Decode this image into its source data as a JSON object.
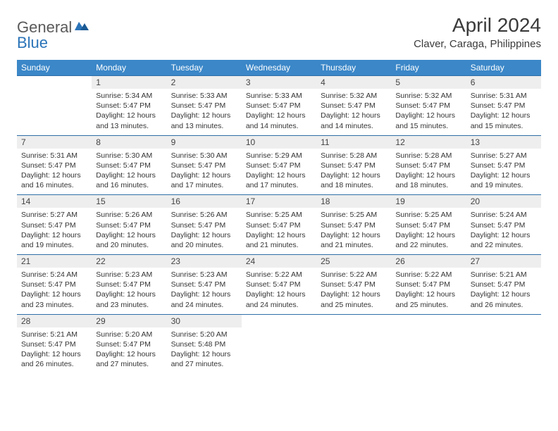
{
  "logo": {
    "general": "General",
    "blue": "Blue"
  },
  "title": "April 2024",
  "location": "Claver, Caraga, Philippines",
  "colors": {
    "header_bg": "#3b87c8",
    "header_text": "#ffffff",
    "daynum_bg": "#eeeeee",
    "rule": "#2f6fa8",
    "logo_gray": "#5a5a5a",
    "logo_blue": "#2b74b8",
    "text": "#333333"
  },
  "calendar": {
    "day_headers": [
      "Sunday",
      "Monday",
      "Tuesday",
      "Wednesday",
      "Thursday",
      "Friday",
      "Saturday"
    ],
    "weeks": [
      {
        "nums": [
          "",
          "1",
          "2",
          "3",
          "4",
          "5",
          "6"
        ],
        "cells": [
          null,
          {
            "sunrise": "Sunrise: 5:34 AM",
            "sunset": "Sunset: 5:47 PM",
            "day1": "Daylight: 12 hours",
            "day2": "and 13 minutes."
          },
          {
            "sunrise": "Sunrise: 5:33 AM",
            "sunset": "Sunset: 5:47 PM",
            "day1": "Daylight: 12 hours",
            "day2": "and 13 minutes."
          },
          {
            "sunrise": "Sunrise: 5:33 AM",
            "sunset": "Sunset: 5:47 PM",
            "day1": "Daylight: 12 hours",
            "day2": "and 14 minutes."
          },
          {
            "sunrise": "Sunrise: 5:32 AM",
            "sunset": "Sunset: 5:47 PM",
            "day1": "Daylight: 12 hours",
            "day2": "and 14 minutes."
          },
          {
            "sunrise": "Sunrise: 5:32 AM",
            "sunset": "Sunset: 5:47 PM",
            "day1": "Daylight: 12 hours",
            "day2": "and 15 minutes."
          },
          {
            "sunrise": "Sunrise: 5:31 AM",
            "sunset": "Sunset: 5:47 PM",
            "day1": "Daylight: 12 hours",
            "day2": "and 15 minutes."
          }
        ]
      },
      {
        "nums": [
          "7",
          "8",
          "9",
          "10",
          "11",
          "12",
          "13"
        ],
        "cells": [
          {
            "sunrise": "Sunrise: 5:31 AM",
            "sunset": "Sunset: 5:47 PM",
            "day1": "Daylight: 12 hours",
            "day2": "and 16 minutes."
          },
          {
            "sunrise": "Sunrise: 5:30 AM",
            "sunset": "Sunset: 5:47 PM",
            "day1": "Daylight: 12 hours",
            "day2": "and 16 minutes."
          },
          {
            "sunrise": "Sunrise: 5:30 AM",
            "sunset": "Sunset: 5:47 PM",
            "day1": "Daylight: 12 hours",
            "day2": "and 17 minutes."
          },
          {
            "sunrise": "Sunrise: 5:29 AM",
            "sunset": "Sunset: 5:47 PM",
            "day1": "Daylight: 12 hours",
            "day2": "and 17 minutes."
          },
          {
            "sunrise": "Sunrise: 5:28 AM",
            "sunset": "Sunset: 5:47 PM",
            "day1": "Daylight: 12 hours",
            "day2": "and 18 minutes."
          },
          {
            "sunrise": "Sunrise: 5:28 AM",
            "sunset": "Sunset: 5:47 PM",
            "day1": "Daylight: 12 hours",
            "day2": "and 18 minutes."
          },
          {
            "sunrise": "Sunrise: 5:27 AM",
            "sunset": "Sunset: 5:47 PM",
            "day1": "Daylight: 12 hours",
            "day2": "and 19 minutes."
          }
        ]
      },
      {
        "nums": [
          "14",
          "15",
          "16",
          "17",
          "18",
          "19",
          "20"
        ],
        "cells": [
          {
            "sunrise": "Sunrise: 5:27 AM",
            "sunset": "Sunset: 5:47 PM",
            "day1": "Daylight: 12 hours",
            "day2": "and 19 minutes."
          },
          {
            "sunrise": "Sunrise: 5:26 AM",
            "sunset": "Sunset: 5:47 PM",
            "day1": "Daylight: 12 hours",
            "day2": "and 20 minutes."
          },
          {
            "sunrise": "Sunrise: 5:26 AM",
            "sunset": "Sunset: 5:47 PM",
            "day1": "Daylight: 12 hours",
            "day2": "and 20 minutes."
          },
          {
            "sunrise": "Sunrise: 5:25 AM",
            "sunset": "Sunset: 5:47 PM",
            "day1": "Daylight: 12 hours",
            "day2": "and 21 minutes."
          },
          {
            "sunrise": "Sunrise: 5:25 AM",
            "sunset": "Sunset: 5:47 PM",
            "day1": "Daylight: 12 hours",
            "day2": "and 21 minutes."
          },
          {
            "sunrise": "Sunrise: 5:25 AM",
            "sunset": "Sunset: 5:47 PM",
            "day1": "Daylight: 12 hours",
            "day2": "and 22 minutes."
          },
          {
            "sunrise": "Sunrise: 5:24 AM",
            "sunset": "Sunset: 5:47 PM",
            "day1": "Daylight: 12 hours",
            "day2": "and 22 minutes."
          }
        ]
      },
      {
        "nums": [
          "21",
          "22",
          "23",
          "24",
          "25",
          "26",
          "27"
        ],
        "cells": [
          {
            "sunrise": "Sunrise: 5:24 AM",
            "sunset": "Sunset: 5:47 PM",
            "day1": "Daylight: 12 hours",
            "day2": "and 23 minutes."
          },
          {
            "sunrise": "Sunrise: 5:23 AM",
            "sunset": "Sunset: 5:47 PM",
            "day1": "Daylight: 12 hours",
            "day2": "and 23 minutes."
          },
          {
            "sunrise": "Sunrise: 5:23 AM",
            "sunset": "Sunset: 5:47 PM",
            "day1": "Daylight: 12 hours",
            "day2": "and 24 minutes."
          },
          {
            "sunrise": "Sunrise: 5:22 AM",
            "sunset": "Sunset: 5:47 PM",
            "day1": "Daylight: 12 hours",
            "day2": "and 24 minutes."
          },
          {
            "sunrise": "Sunrise: 5:22 AM",
            "sunset": "Sunset: 5:47 PM",
            "day1": "Daylight: 12 hours",
            "day2": "and 25 minutes."
          },
          {
            "sunrise": "Sunrise: 5:22 AM",
            "sunset": "Sunset: 5:47 PM",
            "day1": "Daylight: 12 hours",
            "day2": "and 25 minutes."
          },
          {
            "sunrise": "Sunrise: 5:21 AM",
            "sunset": "Sunset: 5:47 PM",
            "day1": "Daylight: 12 hours",
            "day2": "and 26 minutes."
          }
        ]
      },
      {
        "nums": [
          "28",
          "29",
          "30",
          "",
          "",
          "",
          ""
        ],
        "cells": [
          {
            "sunrise": "Sunrise: 5:21 AM",
            "sunset": "Sunset: 5:47 PM",
            "day1": "Daylight: 12 hours",
            "day2": "and 26 minutes."
          },
          {
            "sunrise": "Sunrise: 5:20 AM",
            "sunset": "Sunset: 5:47 PM",
            "day1": "Daylight: 12 hours",
            "day2": "and 27 minutes."
          },
          {
            "sunrise": "Sunrise: 5:20 AM",
            "sunset": "Sunset: 5:48 PM",
            "day1": "Daylight: 12 hours",
            "day2": "and 27 minutes."
          },
          null,
          null,
          null,
          null
        ]
      }
    ]
  }
}
